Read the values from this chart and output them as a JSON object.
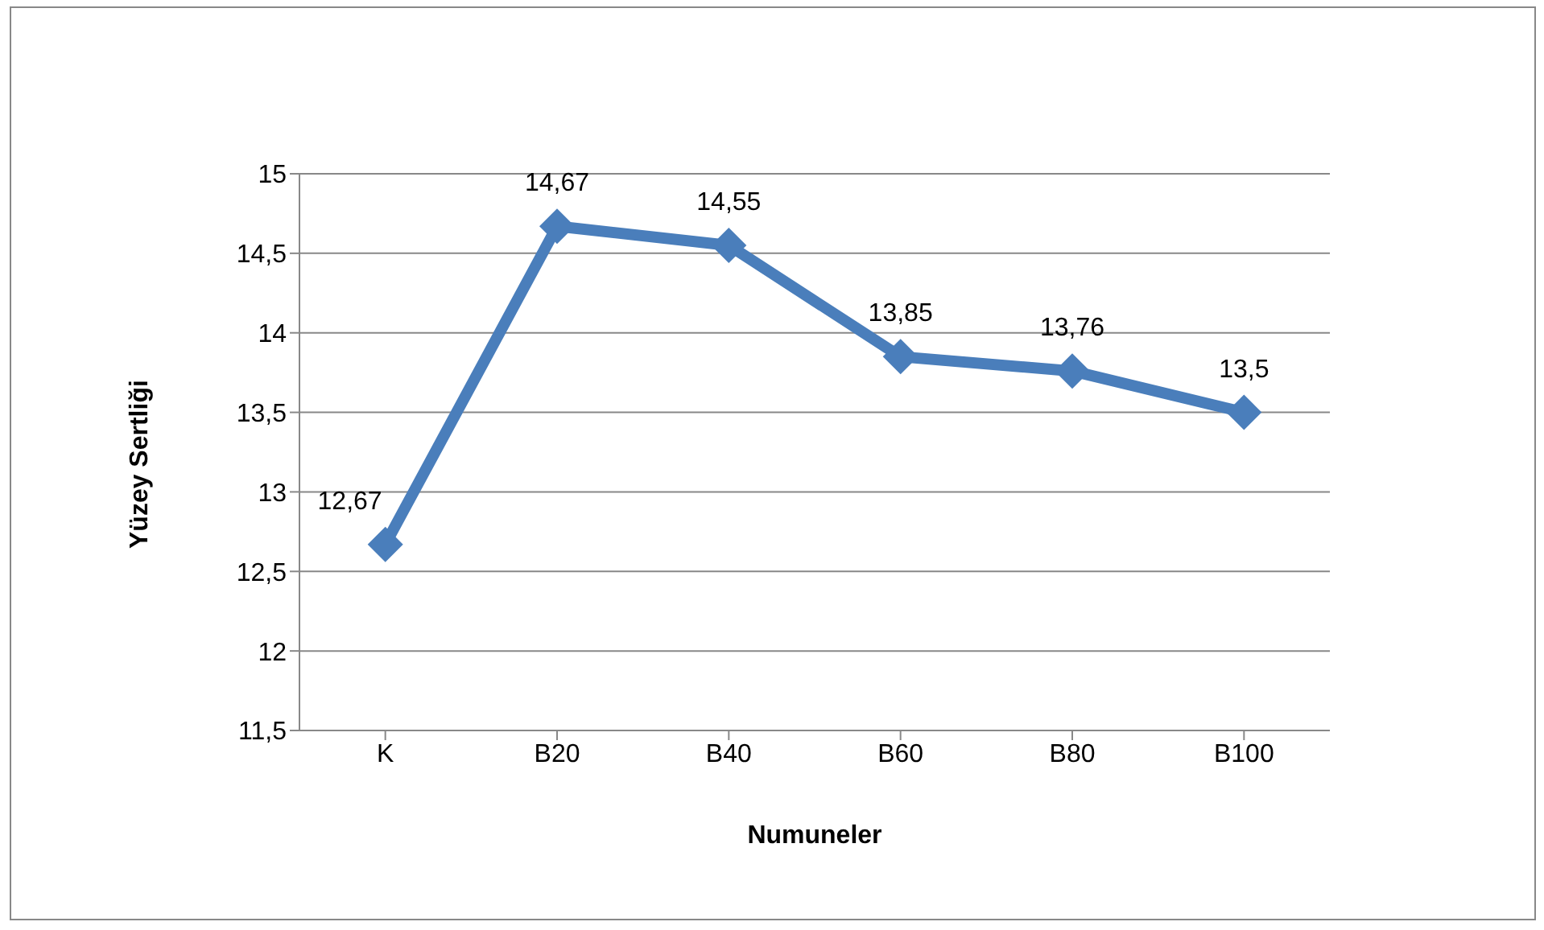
{
  "chart_data": {
    "type": "line",
    "xlabel": "Numuneler",
    "ylabel": "Yüzey Sertliği",
    "categories": [
      "K",
      "B20",
      "B40",
      "B60",
      "B80",
      "B100"
    ],
    "series": [
      {
        "color": "#4a7ebb",
        "values": [
          12.67,
          14.67,
          14.55,
          13.85,
          13.76,
          13.5
        ],
        "value_labels": [
          "12,67",
          "14,67",
          "14,55",
          "13,85",
          "13,76",
          "13,5"
        ]
      }
    ],
    "ylim": [
      11.5,
      15
    ],
    "yticks": [
      {
        "value": 11.5,
        "label": "11,5"
      },
      {
        "value": 12,
        "label": "12"
      },
      {
        "value": 12.5,
        "label": "12,5"
      },
      {
        "value": 13,
        "label": "13"
      },
      {
        "value": 13.5,
        "label": "13,5"
      },
      {
        "value": 14,
        "label": "14"
      },
      {
        "value": 14.5,
        "label": "14,5"
      },
      {
        "value": 15,
        "label": "15"
      }
    ],
    "grid": "y",
    "marker": "diamond",
    "line_style": "solid",
    "legend": false
  }
}
